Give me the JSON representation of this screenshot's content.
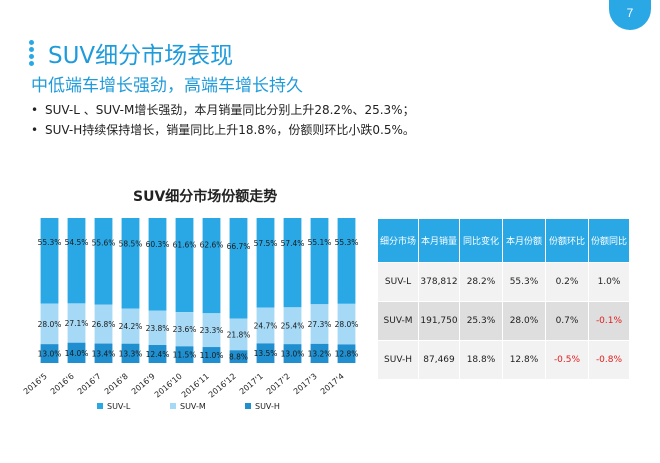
{
  "page_number": "7",
  "title": "SUV细分市场表现",
  "subtitle": "中低端车增长强劲，高端车增长持久",
  "bullets": [
    "SUV-L 、SUV-M增长强劲，本月销量同比分别上升28.2%、25.3%；",
    "SUV-H持续保持增长，销量同比上升18.8%，份额则环比小跌0.5%。"
  ],
  "colors": {
    "accent": "#2aa8e6",
    "suv_l": "#2aa8e6",
    "suv_m": "#a6d9f5",
    "suv_h": "#1f8fcf",
    "negative": "#e11d1d"
  },
  "chart_data": {
    "type": "bar",
    "stacked": true,
    "title": "SUV细分市场份额走势",
    "categories": [
      "2016'5",
      "2016'6",
      "2016'7",
      "2016'8",
      "2016'9",
      "2016'10",
      "2016'11",
      "2016'12",
      "2017'1",
      "2017'2",
      "2017'3",
      "2017'4"
    ],
    "series": [
      {
        "name": "SUV-H",
        "values": [
          13.0,
          14.0,
          13.4,
          13.3,
          12.4,
          11.5,
          11.0,
          8.8,
          13.5,
          13.0,
          13.2,
          12.8
        ],
        "labels": [
          "13.0%",
          "14.0%",
          "13.4%",
          "13.3%",
          "12.4%",
          "11.5%",
          "11.0%",
          "8.8%",
          "13.5%",
          "13.0%",
          "13.2%",
          "12.8%"
        ]
      },
      {
        "name": "SUV-M",
        "values": [
          28.0,
          27.1,
          26.8,
          24.2,
          23.8,
          23.6,
          23.3,
          21.8,
          24.7,
          25.4,
          27.3,
          28.0
        ],
        "labels": [
          "28.0%",
          "27.1%",
          "26.8%",
          "24.2%",
          "23.8%",
          "23.6%",
          "23.3%",
          "21.8%",
          "24.7%",
          "25.4%",
          "27.3%",
          "28.0%"
        ]
      },
      {
        "name": "SUV-L",
        "values": [
          55.3,
          54.5,
          55.6,
          58.5,
          60.3,
          61.6,
          62.6,
          66.7,
          57.5,
          57.4,
          55.1,
          55.3
        ],
        "labels": [
          "55.3%",
          "54.5%",
          "55.6%",
          "58.5%",
          "60.3%",
          "61.6%",
          "62.6%",
          "66.7%",
          "57.5%",
          "57.4%",
          "55.1%",
          "55.3%"
        ]
      }
    ],
    "legend": [
      "SUV-L",
      "SUV-M",
      "SUV-H"
    ],
    "legend_position": "bottom",
    "grid": false
  },
  "table": {
    "headers": [
      "细分市场",
      "本月销量",
      "同比变化",
      "本月份额",
      "份额环比",
      "份额同比"
    ],
    "rows": [
      [
        "SUV-L",
        "378,812",
        "28.2%",
        "55.3%",
        "0.2%",
        "1.0%"
      ],
      [
        "SUV-M",
        "191,750",
        "25.3%",
        "28.0%",
        "0.7%",
        "-0.1%"
      ],
      [
        "SUV-H",
        "87,469",
        "18.8%",
        "12.8%",
        "-0.5%",
        "-0.8%"
      ]
    ]
  }
}
